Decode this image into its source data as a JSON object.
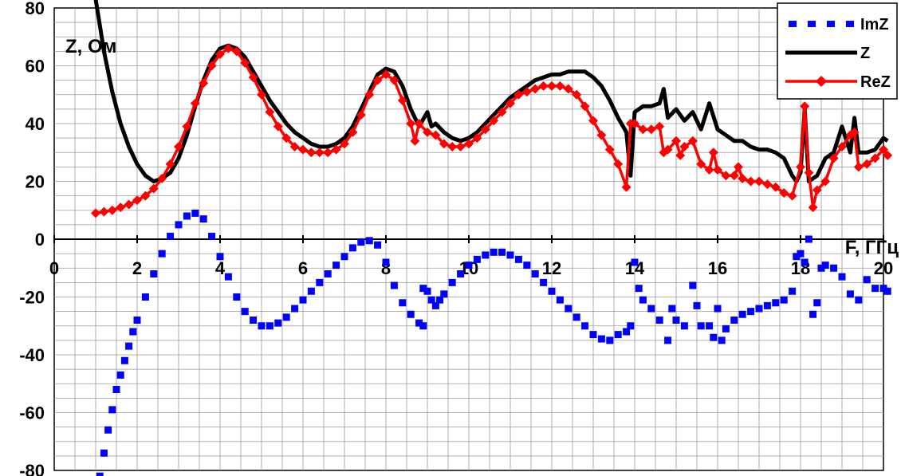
{
  "chart_data": {
    "type": "line",
    "xlabel": "F, ГГц",
    "ylabel": "Z, Ом",
    "xlim": [
      0,
      20
    ],
    "ylim": [
      -80,
      80
    ],
    "x_ticks": [
      "0",
      "2",
      "4",
      "6",
      "8",
      "10",
      "12",
      "14",
      "16",
      "18",
      "20"
    ],
    "y_ticks": [
      "80",
      "60",
      "40",
      "20",
      "0",
      "-20",
      "-40",
      "-60",
      "-80"
    ],
    "grid": true,
    "legend_position": "top-right",
    "series": [
      {
        "name": "ImZ",
        "color": "#0000ff",
        "style": "dashed-square-markers",
        "points": [
          [
            1.1,
            -82
          ],
          [
            1.2,
            -74
          ],
          [
            1.3,
            -66
          ],
          [
            1.4,
            -59
          ],
          [
            1.5,
            -52
          ],
          [
            1.6,
            -47
          ],
          [
            1.7,
            -42
          ],
          [
            1.8,
            -37
          ],
          [
            1.9,
            -32
          ],
          [
            2.0,
            -28
          ],
          [
            2.2,
            -20
          ],
          [
            2.4,
            -12
          ],
          [
            2.6,
            -5
          ],
          [
            2.8,
            1
          ],
          [
            3.0,
            5
          ],
          [
            3.2,
            8
          ],
          [
            3.4,
            9
          ],
          [
            3.6,
            7
          ],
          [
            3.8,
            1
          ],
          [
            4.0,
            -6
          ],
          [
            4.2,
            -13
          ],
          [
            4.4,
            -20
          ],
          [
            4.6,
            -25
          ],
          [
            4.8,
            -28
          ],
          [
            5.0,
            -30
          ],
          [
            5.2,
            -30
          ],
          [
            5.4,
            -29
          ],
          [
            5.6,
            -27
          ],
          [
            5.8,
            -24
          ],
          [
            6.0,
            -21
          ],
          [
            6.2,
            -18
          ],
          [
            6.4,
            -15
          ],
          [
            6.6,
            -12
          ],
          [
            6.8,
            -9
          ],
          [
            7.0,
            -6
          ],
          [
            7.2,
            -3
          ],
          [
            7.4,
            -1
          ],
          [
            7.6,
            -0.5
          ],
          [
            7.8,
            -2
          ],
          [
            8.0,
            -8
          ],
          [
            8.2,
            -16
          ],
          [
            8.4,
            -22
          ],
          [
            8.6,
            -26
          ],
          [
            8.8,
            -29
          ],
          [
            8.9,
            -30
          ],
          [
            8.9,
            -17
          ],
          [
            9.0,
            -18
          ],
          [
            9.1,
            -21
          ],
          [
            9.2,
            -23
          ],
          [
            9.3,
            -21
          ],
          [
            9.4,
            -19
          ],
          [
            9.6,
            -15
          ],
          [
            9.8,
            -12
          ],
          [
            10.0,
            -9
          ],
          [
            10.2,
            -7
          ],
          [
            10.4,
            -5.5
          ],
          [
            10.6,
            -4.5
          ],
          [
            10.8,
            -4.5
          ],
          [
            11.0,
            -5.5
          ],
          [
            11.2,
            -7
          ],
          [
            11.4,
            -9
          ],
          [
            11.6,
            -12
          ],
          [
            11.8,
            -15
          ],
          [
            12.0,
            -18
          ],
          [
            12.2,
            -21
          ],
          [
            12.4,
            -24
          ],
          [
            12.6,
            -27
          ],
          [
            12.8,
            -30
          ],
          [
            13.0,
            -33
          ],
          [
            13.2,
            -34.5
          ],
          [
            13.4,
            -35
          ],
          [
            13.6,
            -33
          ],
          [
            13.8,
            -32
          ],
          [
            13.9,
            -30
          ],
          [
            14.0,
            -8
          ],
          [
            14.1,
            -17
          ],
          [
            14.2,
            -21
          ],
          [
            14.4,
            -24
          ],
          [
            14.6,
            -28
          ],
          [
            14.8,
            -35
          ],
          [
            14.9,
            -24
          ],
          [
            15.0,
            -28
          ],
          [
            15.2,
            -30
          ],
          [
            15.4,
            -16
          ],
          [
            15.5,
            -23
          ],
          [
            15.6,
            -30
          ],
          [
            15.8,
            -30
          ],
          [
            15.9,
            -34
          ],
          [
            16.0,
            -24
          ],
          [
            16.1,
            -35
          ],
          [
            16.2,
            -31
          ],
          [
            16.4,
            -28
          ],
          [
            16.6,
            -26
          ],
          [
            16.8,
            -25
          ],
          [
            17.0,
            -24
          ],
          [
            17.2,
            -23
          ],
          [
            17.4,
            -22
          ],
          [
            17.6,
            -21
          ],
          [
            17.8,
            -18
          ],
          [
            17.9,
            -6
          ],
          [
            18.0,
            -5
          ],
          [
            18.1,
            -8
          ],
          [
            18.2,
            0
          ],
          [
            18.3,
            -26
          ],
          [
            18.4,
            -22
          ],
          [
            18.5,
            -10
          ],
          [
            18.6,
            -9
          ],
          [
            18.8,
            -10
          ],
          [
            19.0,
            -13
          ],
          [
            19.2,
            -19
          ],
          [
            19.4,
            -21
          ],
          [
            19.6,
            -14
          ],
          [
            19.8,
            -17
          ],
          [
            20.0,
            -17
          ],
          [
            20.1,
            -18
          ]
        ]
      },
      {
        "name": "Z",
        "color": "#000000",
        "style": "solid-thick",
        "points": [
          [
            1.0,
            83
          ],
          [
            1.2,
            65
          ],
          [
            1.4,
            51
          ],
          [
            1.6,
            40
          ],
          [
            1.8,
            32
          ],
          [
            2.0,
            26
          ],
          [
            2.2,
            22
          ],
          [
            2.4,
            20
          ],
          [
            2.6,
            21
          ],
          [
            2.8,
            23
          ],
          [
            3.0,
            28
          ],
          [
            3.2,
            36
          ],
          [
            3.4,
            46
          ],
          [
            3.6,
            55
          ],
          [
            3.8,
            62
          ],
          [
            4.0,
            66
          ],
          [
            4.2,
            67
          ],
          [
            4.4,
            66
          ],
          [
            4.6,
            63
          ],
          [
            4.8,
            58
          ],
          [
            5.0,
            53
          ],
          [
            5.2,
            48
          ],
          [
            5.4,
            44
          ],
          [
            5.6,
            40
          ],
          [
            5.8,
            37
          ],
          [
            6.0,
            35
          ],
          [
            6.2,
            33
          ],
          [
            6.4,
            32
          ],
          [
            6.6,
            32
          ],
          [
            6.8,
            33
          ],
          [
            7.0,
            35
          ],
          [
            7.2,
            39
          ],
          [
            7.4,
            45
          ],
          [
            7.6,
            51
          ],
          [
            7.8,
            57
          ],
          [
            8.0,
            59
          ],
          [
            8.2,
            58
          ],
          [
            8.4,
            53
          ],
          [
            8.6,
            45
          ],
          [
            8.8,
            39
          ],
          [
            9.0,
            44
          ],
          [
            9.1,
            39
          ],
          [
            9.2,
            40
          ],
          [
            9.4,
            37
          ],
          [
            9.6,
            35
          ],
          [
            9.8,
            34
          ],
          [
            10.0,
            35
          ],
          [
            10.2,
            37
          ],
          [
            10.4,
            40
          ],
          [
            10.6,
            43
          ],
          [
            10.8,
            46
          ],
          [
            11.0,
            49
          ],
          [
            11.2,
            51
          ],
          [
            11.4,
            53
          ],
          [
            11.6,
            55
          ],
          [
            11.8,
            56
          ],
          [
            12.0,
            57
          ],
          [
            12.2,
            57
          ],
          [
            12.4,
            58
          ],
          [
            12.6,
            58
          ],
          [
            12.8,
            58
          ],
          [
            13.0,
            56
          ],
          [
            13.2,
            53
          ],
          [
            13.4,
            48
          ],
          [
            13.6,
            42
          ],
          [
            13.8,
            37
          ],
          [
            13.9,
            22
          ],
          [
            14.0,
            44
          ],
          [
            14.2,
            46
          ],
          [
            14.4,
            46
          ],
          [
            14.6,
            47
          ],
          [
            14.7,
            52
          ],
          [
            14.8,
            42
          ],
          [
            15.0,
            45
          ],
          [
            15.2,
            41
          ],
          [
            15.4,
            44
          ],
          [
            15.6,
            38
          ],
          [
            15.8,
            47
          ],
          [
            16.0,
            38
          ],
          [
            16.2,
            36
          ],
          [
            16.4,
            34
          ],
          [
            16.6,
            34
          ],
          [
            16.8,
            32
          ],
          [
            17.0,
            31
          ],
          [
            17.2,
            31
          ],
          [
            17.4,
            30
          ],
          [
            17.6,
            28
          ],
          [
            17.8,
            22
          ],
          [
            17.9,
            20
          ],
          [
            18.0,
            23
          ],
          [
            18.1,
            45
          ],
          [
            18.2,
            20
          ],
          [
            18.4,
            22
          ],
          [
            18.6,
            28
          ],
          [
            18.8,
            30
          ],
          [
            19.0,
            39
          ],
          [
            19.2,
            30
          ],
          [
            19.3,
            42
          ],
          [
            19.4,
            30
          ],
          [
            19.6,
            30
          ],
          [
            19.8,
            31
          ],
          [
            20.0,
            35
          ],
          [
            20.1,
            34
          ]
        ]
      },
      {
        "name": "ReZ",
        "color": "#ff0000",
        "style": "solid-diamond-markers",
        "points": [
          [
            1.0,
            9
          ],
          [
            1.2,
            9.5
          ],
          [
            1.4,
            10
          ],
          [
            1.6,
            11
          ],
          [
            1.8,
            12
          ],
          [
            2.0,
            13.5
          ],
          [
            2.2,
            15
          ],
          [
            2.4,
            17.5
          ],
          [
            2.6,
            21
          ],
          [
            2.8,
            26
          ],
          [
            3.0,
            32
          ],
          [
            3.2,
            39
          ],
          [
            3.4,
            47
          ],
          [
            3.6,
            54
          ],
          [
            3.8,
            60
          ],
          [
            4.0,
            64
          ],
          [
            4.2,
            66
          ],
          [
            4.4,
            65
          ],
          [
            4.6,
            61
          ],
          [
            4.8,
            56
          ],
          [
            5.0,
            50
          ],
          [
            5.2,
            44
          ],
          [
            5.4,
            39
          ],
          [
            5.6,
            35
          ],
          [
            5.8,
            32
          ],
          [
            6.0,
            31
          ],
          [
            6.2,
            30
          ],
          [
            6.4,
            30
          ],
          [
            6.6,
            30
          ],
          [
            6.8,
            31
          ],
          [
            7.0,
            33
          ],
          [
            7.2,
            37
          ],
          [
            7.4,
            43
          ],
          [
            7.6,
            50
          ],
          [
            7.8,
            55
          ],
          [
            8.0,
            57
          ],
          [
            8.2,
            55
          ],
          [
            8.4,
            48
          ],
          [
            8.6,
            40
          ],
          [
            8.7,
            34
          ],
          [
            8.8,
            40
          ],
          [
            9.0,
            37
          ],
          [
            9.2,
            36
          ],
          [
            9.4,
            33
          ],
          [
            9.6,
            32
          ],
          [
            9.8,
            32
          ],
          [
            10.0,
            33
          ],
          [
            10.2,
            35
          ],
          [
            10.4,
            38
          ],
          [
            10.6,
            41
          ],
          [
            10.8,
            44
          ],
          [
            11.0,
            47
          ],
          [
            11.2,
            50
          ],
          [
            11.4,
            51
          ],
          [
            11.6,
            52
          ],
          [
            11.8,
            53
          ],
          [
            12.0,
            53
          ],
          [
            12.2,
            53
          ],
          [
            12.4,
            52
          ],
          [
            12.6,
            50
          ],
          [
            12.8,
            46
          ],
          [
            13.0,
            41
          ],
          [
            13.2,
            36
          ],
          [
            13.4,
            31
          ],
          [
            13.6,
            26
          ],
          [
            13.8,
            18
          ],
          [
            13.9,
            40
          ],
          [
            14.0,
            40
          ],
          [
            14.2,
            38
          ],
          [
            14.4,
            38
          ],
          [
            14.6,
            39
          ],
          [
            14.7,
            30
          ],
          [
            14.8,
            31
          ],
          [
            15.0,
            34
          ],
          [
            15.1,
            29
          ],
          [
            15.2,
            32
          ],
          [
            15.4,
            34
          ],
          [
            15.6,
            26
          ],
          [
            15.8,
            24
          ],
          [
            15.9,
            30
          ],
          [
            16.0,
            24
          ],
          [
            16.2,
            22
          ],
          [
            16.4,
            22
          ],
          [
            16.5,
            25
          ],
          [
            16.6,
            21
          ],
          [
            16.8,
            20
          ],
          [
            17.0,
            20
          ],
          [
            17.2,
            19
          ],
          [
            17.4,
            18
          ],
          [
            17.6,
            16
          ],
          [
            17.8,
            15
          ],
          [
            18.0,
            25
          ],
          [
            18.1,
            46
          ],
          [
            18.2,
            23
          ],
          [
            18.3,
            11
          ],
          [
            18.4,
            17
          ],
          [
            18.6,
            20
          ],
          [
            18.8,
            28
          ],
          [
            19.0,
            32
          ],
          [
            19.2,
            36
          ],
          [
            19.3,
            37
          ],
          [
            19.4,
            25
          ],
          [
            19.6,
            26
          ],
          [
            19.8,
            28
          ],
          [
            20.0,
            31
          ],
          [
            20.1,
            29
          ]
        ]
      }
    ]
  }
}
